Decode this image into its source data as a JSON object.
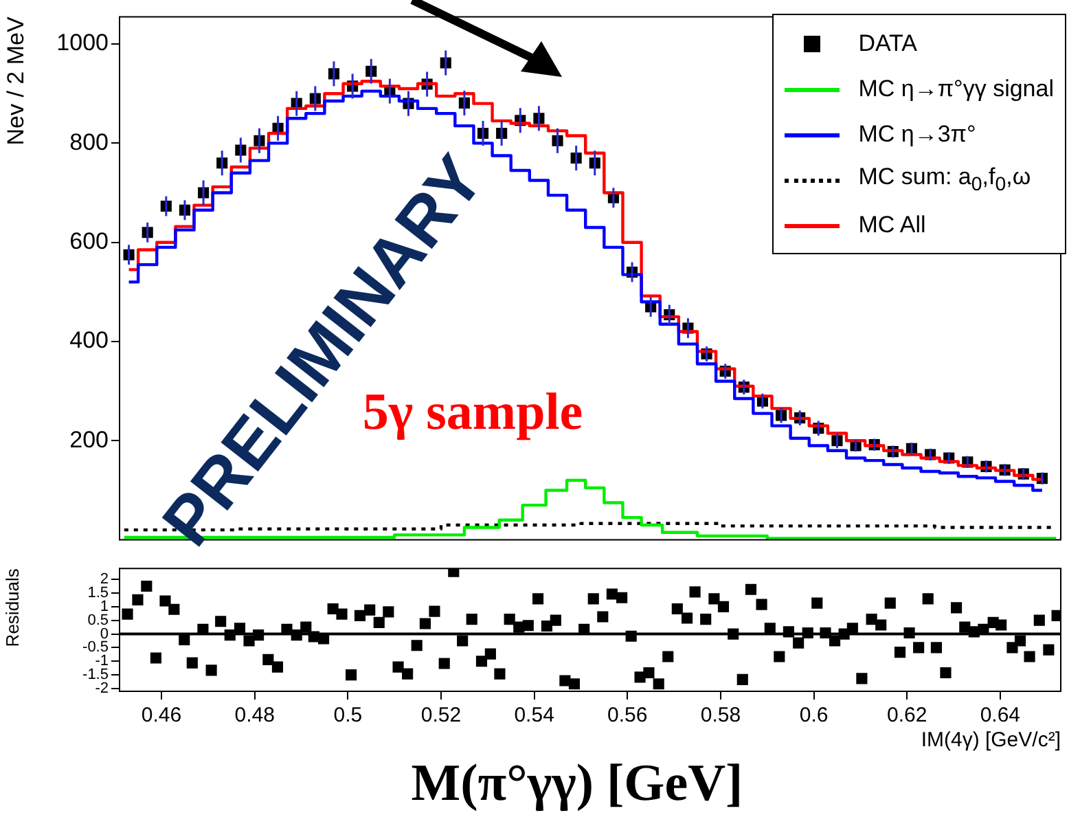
{
  "chart_data": [
    {
      "type": "step",
      "ylabel": "Nev / 2 MeV",
      "annotations": [
        "PRELIMINARY",
        "5γ sample"
      ],
      "xlim": [
        0.451,
        0.653
      ],
      "ylim": [
        0,
        1055
      ],
      "yticks": [
        200,
        400,
        600,
        800,
        1000
      ],
      "tick_labels": "y",
      "legend": "top right",
      "series": [
        {
          "name": "DATA",
          "type": "scatter",
          "marker": "square",
          "color": "#000000",
          "x": [
            0.453,
            0.457,
            0.461,
            0.465,
            0.469,
            0.473,
            0.477,
            0.481,
            0.485,
            0.489,
            0.493,
            0.497,
            0.501,
            0.505,
            0.509,
            0.513,
            0.517,
            0.521,
            0.525,
            0.529,
            0.533,
            0.537,
            0.541,
            0.545,
            0.549,
            0.553,
            0.557,
            0.561,
            0.565,
            0.569,
            0.573,
            0.577,
            0.581,
            0.585,
            0.589,
            0.593,
            0.597,
            0.601,
            0.605,
            0.609,
            0.613,
            0.617,
            0.621,
            0.625,
            0.629,
            0.633,
            0.637,
            0.641,
            0.645,
            0.649
          ],
          "values": [
            575,
            620,
            673,
            665,
            700,
            760,
            786,
            805,
            830,
            880,
            890,
            940,
            915,
            945,
            905,
            880,
            919,
            962,
            881,
            820,
            820,
            846,
            850,
            805,
            770,
            760,
            690,
            540,
            470,
            454,
            427,
            375,
            340,
            308,
            280,
            251,
            246,
            225,
            200,
            190,
            192,
            178,
            184,
            172,
            165,
            157,
            148,
            141,
            133,
            124
          ],
          "errors": [
            20,
            20,
            20,
            20,
            25,
            25,
            25,
            25,
            25,
            25,
            25,
            25,
            25,
            25,
            25,
            25,
            25,
            25,
            25,
            25,
            25,
            25,
            25,
            25,
            25,
            25,
            20,
            20,
            20,
            20,
            20,
            15,
            15,
            15,
            15,
            15,
            15,
            15,
            15,
            12,
            12,
            12,
            12,
            12,
            12,
            12,
            12,
            12,
            12,
            12
          ]
        },
        {
          "name": "MC η→π°γγ signal",
          "color": "#00ee00",
          "x": [
            0.452,
            0.5,
            0.52,
            0.53,
            0.535,
            0.54,
            0.545,
            0.549,
            0.553,
            0.557,
            0.561,
            0.565,
            0.57,
            0.58,
            0.6,
            0.652
          ],
          "values": [
            5,
            5,
            10,
            25,
            40,
            70,
            100,
            120,
            105,
            75,
            45,
            30,
            15,
            8,
            3,
            3
          ]
        },
        {
          "name": "MC η→3π°",
          "color": "#0000ff",
          "x": [
            0.453,
            0.457,
            0.461,
            0.465,
            0.469,
            0.473,
            0.477,
            0.481,
            0.485,
            0.489,
            0.493,
            0.497,
            0.501,
            0.505,
            0.509,
            0.513,
            0.517,
            0.521,
            0.525,
            0.529,
            0.533,
            0.537,
            0.541,
            0.545,
            0.549,
            0.553,
            0.557,
            0.561,
            0.565,
            0.569,
            0.573,
            0.577,
            0.581,
            0.585,
            0.589,
            0.593,
            0.597,
            0.601,
            0.605,
            0.609,
            0.613,
            0.617,
            0.621,
            0.625,
            0.629,
            0.633,
            0.637,
            0.641,
            0.645,
            0.649
          ],
          "values": [
            520,
            555,
            590,
            625,
            665,
            700,
            740,
            765,
            800,
            850,
            860,
            885,
            895,
            905,
            895,
            885,
            870,
            860,
            835,
            800,
            775,
            745,
            725,
            695,
            665,
            630,
            590,
            535,
            480,
            435,
            395,
            355,
            320,
            285,
            255,
            230,
            205,
            190,
            180,
            165,
            160,
            152,
            145,
            138,
            135,
            128,
            125,
            118,
            110,
            100
          ]
        },
        {
          "name": "MC sum: a$_{0}$,f$_{0}$,ω",
          "color": "#000000",
          "line_style": "dotted",
          "x": [
            0.452,
            0.5,
            0.54,
            0.56,
            0.6,
            0.652
          ],
          "values": [
            20,
            22,
            30,
            33,
            28,
            25
          ]
        },
        {
          "name": "MC All",
          "color": "#ff0000",
          "x": [
            0.453,
            0.457,
            0.461,
            0.465,
            0.469,
            0.473,
            0.477,
            0.481,
            0.485,
            0.489,
            0.493,
            0.497,
            0.501,
            0.505,
            0.509,
            0.513,
            0.517,
            0.521,
            0.525,
            0.529,
            0.533,
            0.537,
            0.541,
            0.545,
            0.549,
            0.553,
            0.557,
            0.561,
            0.565,
            0.569,
            0.573,
            0.577,
            0.581,
            0.585,
            0.589,
            0.593,
            0.597,
            0.601,
            0.605,
            0.609,
            0.613,
            0.617,
            0.621,
            0.625,
            0.629,
            0.633,
            0.637,
            0.641,
            0.645,
            0.649
          ],
          "values": [
            545,
            585,
            600,
            632,
            675,
            712,
            752,
            790,
            820,
            870,
            875,
            900,
            920,
            925,
            915,
            910,
            920,
            895,
            900,
            880,
            845,
            840,
            835,
            825,
            815,
            780,
            700,
            600,
            492,
            450,
            420,
            380,
            345,
            310,
            290,
            265,
            245,
            230,
            215,
            200,
            190,
            180,
            172,
            165,
            158,
            150,
            145,
            140,
            130,
            122
          ]
        }
      ]
    },
    {
      "type": "scatter",
      "marker": "square",
      "xlabel": "IM(4γ) [GeV/c²]",
      "ylabel": "Residuals",
      "annotations": [
        "M(π°γγ) [GeV]"
      ],
      "xlim": [
        0.451,
        0.653
      ],
      "xticks": [
        0.46,
        0.48,
        0.5,
        0.52,
        0.54,
        0.56,
        0.58,
        0.6,
        0.62,
        0.64
      ],
      "ylim": [
        -2.1,
        2.4
      ],
      "yticks": [
        -2,
        -1.5,
        -1,
        -0.5,
        0,
        0.5,
        1,
        1.5,
        2
      ],
      "ref_lines": [
        {
          "axis": "y",
          "value": 0,
          "color": "#000000"
        }
      ],
      "series": [
        {
          "color": "#000000",
          "x": [
            0.4527,
            0.4549,
            0.4568,
            0.4588,
            0.4608,
            0.4627,
            0.4649,
            0.4666,
            0.4689,
            0.4707,
            0.4727,
            0.4747,
            0.4768,
            0.4788,
            0.4808,
            0.4829,
            0.4849,
            0.4869,
            0.489,
            0.491,
            0.4927,
            0.4948,
            0.4968,
            0.4987,
            0.5007,
            0.5026,
            0.5047,
            0.5067,
            0.5087,
            0.5108,
            0.5128,
            0.5148,
            0.5166,
            0.5186,
            0.5207,
            0.5227,
            0.5246,
            0.5266,
            0.5287,
            0.5306,
            0.5326,
            0.5347,
            0.5367,
            0.5387,
            0.5408,
            0.5427,
            0.5446,
            0.5466,
            0.5486,
            0.5507,
            0.5527,
            0.5547,
            0.5567,
            0.5588,
            0.5608,
            0.5627,
            0.5646,
            0.5667,
            0.5687,
            0.5707,
            0.5728,
            0.5745,
            0.5768,
            0.5786,
            0.5806,
            0.5827,
            0.5847,
            0.5865,
            0.5888,
            0.5906,
            0.5926,
            0.5946,
            0.5967,
            0.5987,
            0.6007,
            0.6025,
            0.6045,
            0.6065,
            0.6083,
            0.6103,
            0.6124,
            0.6144,
            0.6164,
            0.6185,
            0.6205,
            0.6225,
            0.6245,
            0.6263,
            0.6283,
            0.6306,
            0.6324,
            0.6344,
            0.6364,
            0.6385,
            0.6402,
            0.6426,
            0.6443,
            0.6463,
            0.6484,
            0.6504,
            0.6522
          ],
          "values": [
            0.73,
            1.25,
            1.75,
            -0.88,
            1.21,
            0.9,
            -0.21,
            -1.06,
            0.17,
            -1.33,
            0.46,
            -0.04,
            0.21,
            -0.25,
            -0.04,
            -0.94,
            -1.21,
            0.17,
            -0.04,
            0.25,
            -0.1,
            -0.17,
            0.92,
            0.73,
            -1.5,
            0.67,
            0.88,
            0.42,
            0.81,
            -1.21,
            -1.46,
            -0.42,
            0.38,
            0.83,
            -1.08,
            2.29,
            -0.25,
            0.54,
            -1,
            -0.73,
            -1.46,
            0.54,
            0.25,
            0.31,
            1.29,
            0.29,
            0.5,
            -1.71,
            -1.83,
            0.17,
            1.29,
            0.63,
            1.46,
            1.33,
            -0.08,
            -1.58,
            -1.42,
            -1.83,
            -0.83,
            0.92,
            0.58,
            1.54,
            0.54,
            1.29,
            1,
            0,
            -1.67,
            1.63,
            1.08,
            0.21,
            -0.83,
            0.08,
            -0.33,
            0.04,
            1.13,
            0.04,
            -0.25,
            0,
            0.21,
            -1.63,
            0.54,
            0.33,
            1.13,
            -0.67,
            0.04,
            -0.5,
            1.29,
            -0.5,
            -1.42,
            0.96,
            0.25,
            0.08,
            0.17,
            0.42,
            0.33,
            -0.5,
            -0.25,
            -0.83,
            0.5,
            -0.58,
            0.67
          ]
        }
      ]
    }
  ]
}
